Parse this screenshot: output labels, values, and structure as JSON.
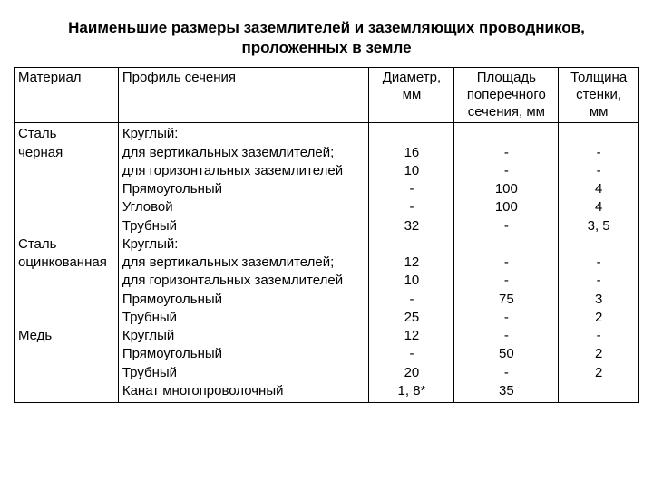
{
  "title_l1": "Наименьшие размеры заземлителей и заземляющих проводников,",
  "title_l2": "проложенных в земле",
  "headers": {
    "material": "Материал",
    "profile": "Профиль сечения",
    "diameter_l1": "Диаметр,",
    "diameter_l2": "мм",
    "area_l1": "Площадь",
    "area_l2": "поперечного",
    "area_l3": "сечения, мм",
    "thick_l1": "Толщина",
    "thick_l2": "стенки,",
    "thick_l3": "мм"
  },
  "mat1_l1": "Сталь",
  "mat1_l2": "черная",
  "mat2_l1": "Сталь",
  "mat2_l2": "оцинкованная",
  "mat3": "Медь",
  "p1_l1": "Круглый:",
  "p1_l2": "для вертикальных заземлителей;",
  "p1_l3": "для горизонтальных заземлителей",
  "p1_l4": "Прямоугольный",
  "p1_l5": "Угловой",
  "p1_l6": "Трубный",
  "p2_l1": "Круглый:",
  "p2_l2": "для вертикальных заземлителей;",
  "p2_l3": "для горизонтальных заземлителей",
  "p2_l4": "Прямоугольный",
  "p2_l5": "Трубный",
  "p3_l1": "Круглый",
  "p3_l2": "Прямоугольный",
  "p3_l3": "Трубный",
  "p3_l4": "Канат многопроволочный",
  "d1_l2": "16",
  "d1_l3": "10",
  "d1_l4": "-",
  "d1_l5": "-",
  "d1_l6": "32",
  "d2_l2": "12",
  "d2_l3": "10",
  "d2_l4": "-",
  "d2_l5": "25",
  "d3_l1": "12",
  "d3_l2": "-",
  "d3_l3": "20",
  "d3_l4": "1, 8*",
  "a1_l2": "-",
  "a1_l3": "-",
  "a1_l4": "100",
  "a1_l5": "100",
  "a1_l6": "-",
  "a2_l2": "-",
  "a2_l3": "-",
  "a2_l4": "75",
  "a2_l5": "-",
  "a3_l1": "-",
  "a3_l2": "50",
  "a3_l3": "-",
  "a3_l4": "35",
  "t1_l2": "-",
  "t1_l3": "-",
  "t1_l4": "4",
  "t1_l5": "4",
  "t1_l6": "3, 5",
  "t2_l2": "-",
  "t2_l3": "-",
  "t2_l4": "3",
  "t2_l5": "2",
  "t3_l1": "-",
  "t3_l2": "2",
  "t3_l3": "2"
}
